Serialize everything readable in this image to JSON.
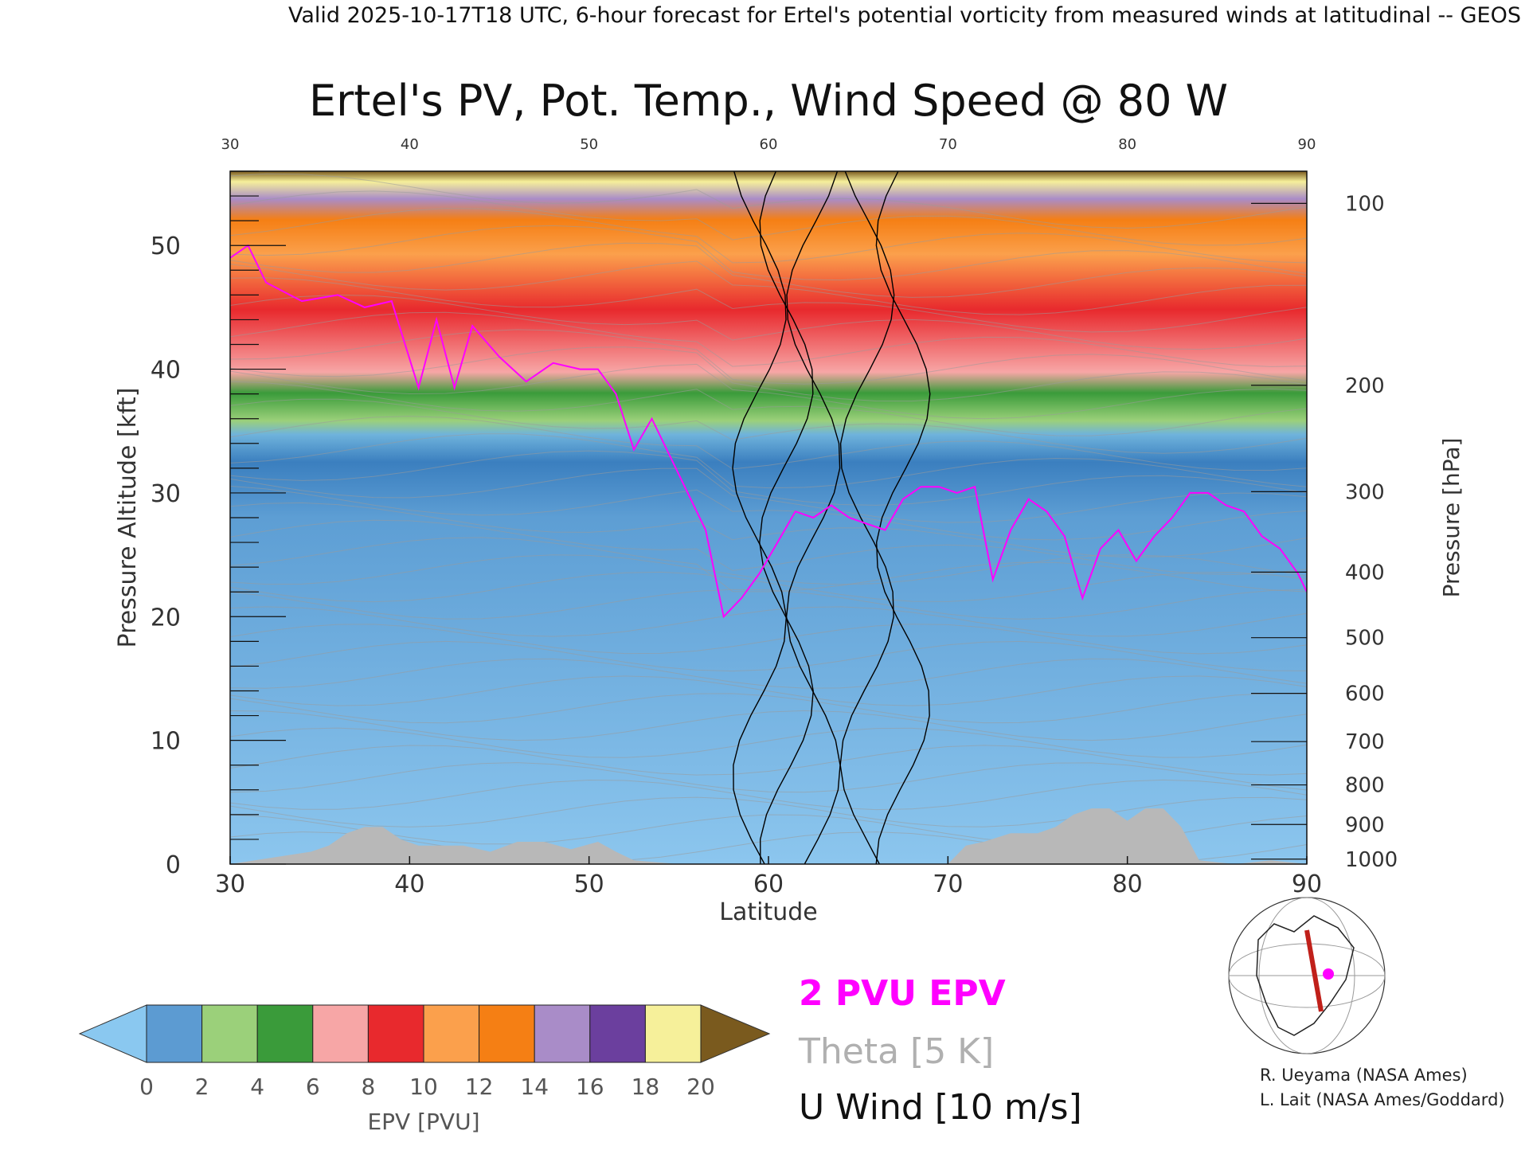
{
  "header": "Valid 2025-10-17T18 UTC, 6-hour forecast for Ertel's potential vorticity from measured winds at latitudinal -- GEOS",
  "chart_data": {
    "type": "heatmap",
    "title": "Ertel's PV, Pot. Temp., Wind Speed @ 80 W",
    "xlabel": "Latitude",
    "ylabel": "Pressure Altitude [kft]",
    "y2label": "Pressure [hPa]",
    "xlim": [
      30,
      90
    ],
    "ylim": [
      0,
      56
    ],
    "x_ticks": [
      "30",
      "40",
      "50",
      "60",
      "70",
      "80",
      "90"
    ],
    "y_ticks": [
      "0",
      "10",
      "20",
      "30",
      "40",
      "50"
    ],
    "pressure_ticks": [
      "100",
      "200",
      "300",
      "400",
      "500",
      "600",
      "700",
      "800",
      "900",
      "1000"
    ],
    "pressure_tick_altitudes_kft": [
      53.4,
      38.7,
      30.1,
      23.6,
      18.3,
      13.8,
      9.9,
      6.4,
      3.2,
      0.4
    ],
    "tropopause_2pvu": {
      "lat": [
        30,
        31,
        32,
        34,
        36,
        37.5,
        39,
        40.5,
        41.5,
        42.5,
        43.5,
        45,
        46.5,
        48,
        49.5,
        50.5,
        51.5,
        52.5,
        53.5,
        54.5,
        55.5,
        56.5,
        57.5,
        58.5,
        59.5,
        60.5,
        61.5,
        62.5,
        63.5,
        64.5,
        65.5,
        66.5,
        67.5,
        68.5,
        69.5,
        70.5,
        71.5,
        72.5,
        73.5,
        74.5,
        75.5,
        76.5,
        77.5,
        78.5,
        79.5,
        80.5,
        81.5,
        82.5,
        83.5,
        84.5,
        85.5,
        86.5,
        87.5,
        88.5,
        89.5,
        90
      ],
      "kft": [
        49,
        50,
        47,
        45.5,
        46,
        45,
        45.5,
        38.5,
        44,
        38.5,
        43.5,
        41,
        39,
        40.5,
        40,
        40,
        38,
        33.5,
        36,
        33,
        30,
        27,
        20,
        21.5,
        23.5,
        26,
        28.5,
        28,
        29,
        28,
        27.5,
        27,
        29.5,
        30.5,
        30.5,
        30,
        30.5,
        23,
        27,
        29.5,
        28.5,
        26.5,
        21.5,
        25.5,
        27,
        24.5,
        26.5,
        28,
        30,
        30,
        29,
        28.5,
        26.5,
        25.5,
        23.5,
        22
      ]
    },
    "surface_terrain": {
      "lat": [
        30,
        34.5,
        35.5,
        36.5,
        37.5,
        38.5,
        39.5,
        40.5,
        41.5,
        43,
        44.5,
        46,
        47.5,
        49,
        50.5,
        51.5,
        52.5,
        55,
        57,
        59,
        61,
        63,
        65,
        67,
        68.5,
        70,
        71,
        72,
        73.5,
        75,
        76,
        77,
        78,
        79,
        80,
        81,
        82,
        83,
        84,
        86,
        88,
        90
      ],
      "kft": [
        0,
        1,
        1.5,
        2.5,
        3,
        3,
        2,
        1.5,
        1.5,
        1.5,
        1,
        1.8,
        1.8,
        1.2,
        1.8,
        1,
        0.3,
        0,
        0,
        0,
        0,
        0,
        0,
        0,
        0,
        0,
        1.5,
        1.8,
        2.5,
        2.5,
        3,
        4,
        4.5,
        4.5,
        3.5,
        4.5,
        4.5,
        3,
        0.3,
        0,
        0.3,
        0
      ]
    },
    "u_wind_zero_line_lat": [
      59.5,
      61.0,
      62.5,
      65.5,
      67.5
    ],
    "colorbar": {
      "label": "EPV [PVU]",
      "ticks": [
        "0",
        "2",
        "4",
        "6",
        "8",
        "10",
        "12",
        "14",
        "16",
        "18",
        "20"
      ],
      "min": 0,
      "max": 20,
      "under_color": "#8ac8f0",
      "over_color": "#7a5a1e"
    },
    "legend": {
      "epv": "2 PVU EPV",
      "theta": "Theta [5 K]",
      "wind": "U Wind [10 m/s]"
    },
    "colors": {
      "epv_contour": "#ff00ff",
      "theta_contour": "#9a9a9a",
      "wind_contour": "#000000",
      "terrain": "#b8b8b8"
    }
  },
  "credits": [
    "R. Ueyama (NASA Ames)",
    "L. Lait (NASA Ames/Goddard)"
  ]
}
